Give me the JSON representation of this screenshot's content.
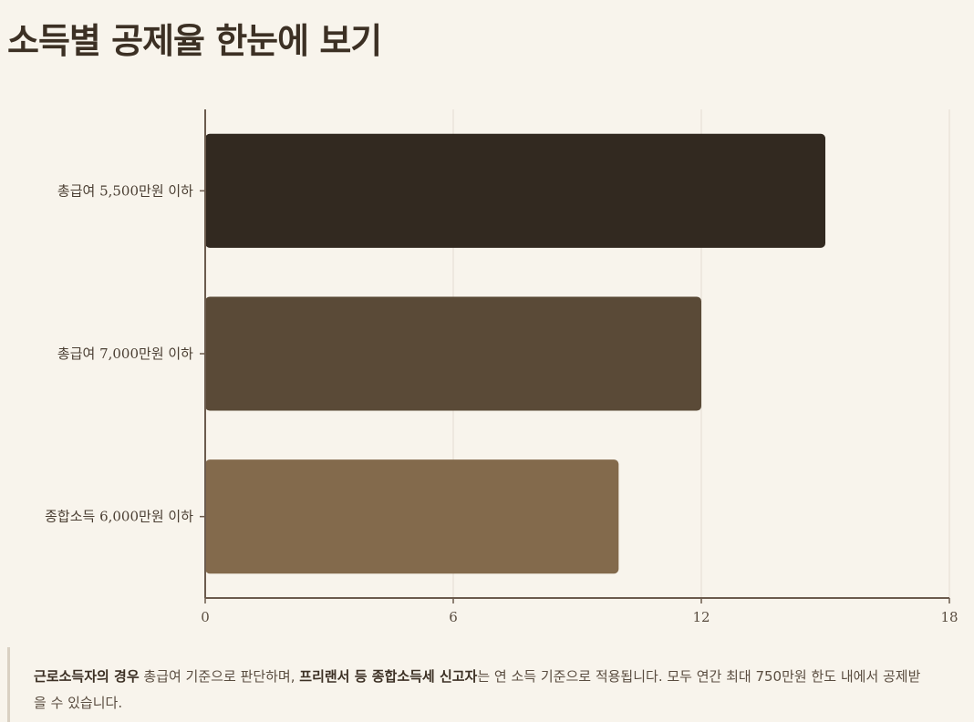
{
  "title": "소득별 공제율 한눈에 보기",
  "chart_data": {
    "type": "bar",
    "orientation": "horizontal",
    "categories": [
      "총급여 5,500만원 이하",
      "총급여 7,000만원 이하",
      "종합소득 6,000만원 이하"
    ],
    "values": [
      15,
      12,
      10
    ],
    "bar_colors": [
      "#322920",
      "#5a4a37",
      "#836a4c"
    ],
    "xlim": [
      0,
      18
    ],
    "xticks": [
      0,
      6,
      12,
      18
    ],
    "xticks_labels": [
      "0",
      "6",
      "12",
      "18"
    ],
    "grid": "vertical",
    "title": "",
    "xlabel": "",
    "ylabel": ""
  },
  "note": {
    "bold1": "근로소득자의 경우",
    "text1": " 총급여 기준으로 판단하며, ",
    "bold2": "프리랜서 등 종합소득세 신고자",
    "text2": "는 연 소득 기준으로 적용됩니다. 모두 연간 최대 750만원 한도 내에서 공제받을 수 있습니다."
  },
  "colors": {
    "background": "#f8f4ec",
    "axis": "#6b5b4d",
    "grid": "#e3ddd2"
  }
}
